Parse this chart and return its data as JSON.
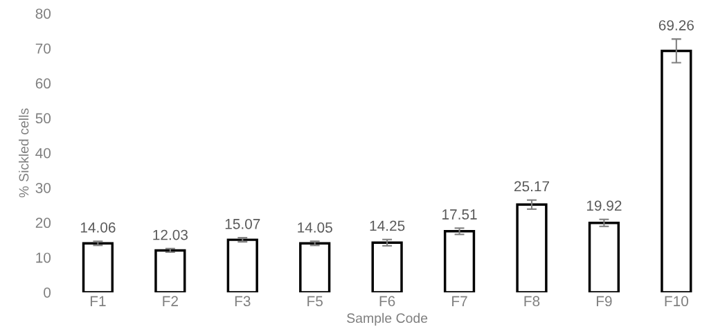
{
  "chart_data": {
    "type": "bar",
    "xlabel": "Sample Code",
    "ylabel": "% Sickled cells",
    "categories": [
      "F1",
      "F2",
      "F3",
      "F5",
      "F6",
      "F7",
      "F8",
      "F9",
      "F10"
    ],
    "values": [
      14.06,
      12.03,
      15.07,
      14.05,
      14.25,
      17.51,
      25.17,
      19.92,
      69.26
    ],
    "errors": [
      0.6,
      0.5,
      0.6,
      0.6,
      0.9,
      0.9,
      1.3,
      1.0,
      3.4
    ],
    "color": "#ffffff",
    "ylim": [
      0,
      80
    ],
    "yticks": [
      0,
      10,
      20,
      30,
      40,
      50,
      60,
      70,
      80
    ],
    "data_labels": true,
    "grid": false,
    "legend": false
  }
}
